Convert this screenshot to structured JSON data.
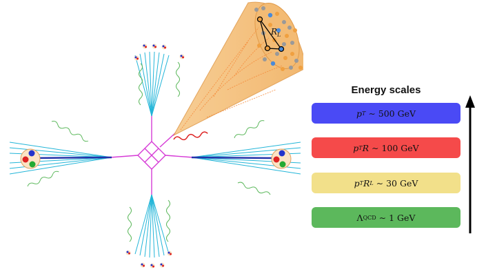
{
  "diagram": {
    "cone_label": "R_L"
  },
  "energy_scales": {
    "title": "Energy scales",
    "items": [
      {
        "parts": [
          {
            "t": "p",
            "i": true
          },
          {
            "t": "T",
            "sub": true,
            "i": true
          },
          {
            "t": " ∼ 500 GeV"
          }
        ],
        "color": "#4a4af5"
      },
      {
        "parts": [
          {
            "t": "p",
            "i": true
          },
          {
            "t": "T",
            "sub": true,
            "i": true
          },
          {
            "t": "R",
            "i": true
          },
          {
            "t": " ∼ 100 GeV"
          }
        ],
        "color": "#f54a4a"
      },
      {
        "parts": [
          {
            "t": "p",
            "i": true
          },
          {
            "t": "T",
            "sub": true,
            "i": true
          },
          {
            "t": "R",
            "i": true
          },
          {
            "t": "L",
            "sub": true,
            "i": true
          },
          {
            "t": " ∼ 30 GeV"
          }
        ],
        "color": "#f2e08a"
      },
      {
        "parts": [
          {
            "t": "Λ"
          },
          {
            "t": "QCD",
            "sub": true
          },
          {
            "t": " ∼ 1 GeV"
          }
        ],
        "color": "#5cb85c"
      }
    ]
  }
}
